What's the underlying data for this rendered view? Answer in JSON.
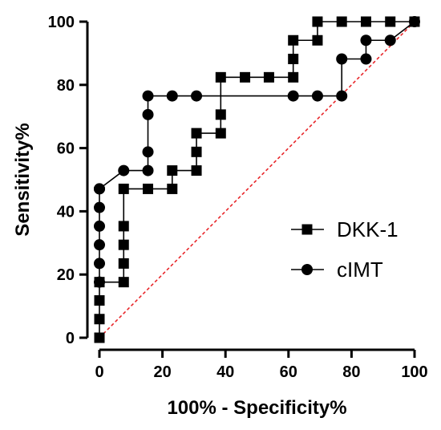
{
  "chart_data": {
    "type": "line",
    "xlabel": "100% - Specificity%",
    "ylabel": "Sensitivity%",
    "xlim": [
      0,
      100
    ],
    "ylim": [
      0,
      100
    ],
    "xticks": [
      "0",
      "20",
      "40",
      "60",
      "80",
      "100"
    ],
    "yticks": [
      "0",
      "20",
      "40",
      "60",
      "80",
      "100"
    ],
    "grid": false,
    "legend_position": "right",
    "reference_line": {
      "from": [
        0,
        0
      ],
      "to": [
        100,
        100
      ],
      "color": "#e8262a",
      "style": "dashed"
    },
    "series": [
      {
        "name": "DKK-1",
        "marker": "square",
        "x": [
          0,
          0,
          0,
          0,
          7.7,
          7.7,
          7.7,
          7.7,
          7.7,
          15.4,
          23.1,
          23.1,
          30.8,
          30.8,
          30.8,
          38.5,
          38.5,
          38.5,
          46.2,
          53.8,
          61.5,
          61.5,
          61.5,
          69.2,
          69.2,
          76.9,
          84.6,
          92.3,
          100
        ],
        "y": [
          0,
          5.9,
          11.8,
          17.6,
          17.6,
          23.5,
          29.4,
          35.3,
          47.1,
          47.1,
          47.1,
          52.9,
          52.9,
          58.8,
          64.7,
          64.7,
          70.6,
          82.4,
          82.4,
          82.4,
          82.4,
          88.2,
          94.1,
          94.1,
          100,
          100,
          100,
          100,
          100
        ]
      },
      {
        "name": "cIMT",
        "marker": "circle",
        "x": [
          0,
          0,
          0,
          0,
          0,
          0,
          0,
          7.7,
          15.4,
          15.4,
          15.4,
          15.4,
          23.1,
          30.8,
          61.5,
          69.2,
          76.9,
          76.9,
          84.6,
          84.6,
          92.3,
          100
        ],
        "y": [
          17.6,
          23.5,
          29.4,
          35.3,
          41.2,
          47.1,
          47.1,
          52.9,
          52.9,
          58.8,
          70.6,
          76.5,
          76.5,
          76.5,
          76.5,
          76.5,
          76.5,
          88.2,
          88.2,
          94.1,
          94.1,
          100
        ]
      }
    ]
  }
}
